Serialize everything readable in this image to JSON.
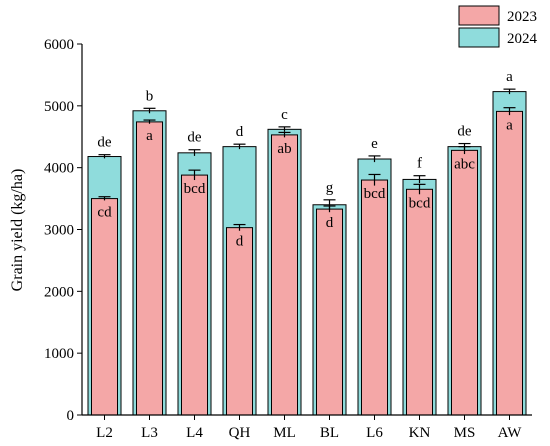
{
  "chart_data": {
    "type": "bar",
    "xlabel": "",
    "ylabel": "Grain yield (kg/ha)",
    "ylim": [
      0,
      6000
    ],
    "yticks": [
      "0",
      "1000",
      "2000",
      "3000",
      "4000",
      "5000",
      "6000"
    ],
    "categories": [
      "L2",
      "L3",
      "L4",
      "QH",
      "ML",
      "BL",
      "L6",
      "KN",
      "MS",
      "AW"
    ],
    "legend_position": "top-right",
    "series": [
      {
        "name": "2024",
        "color": "#8fdcdc",
        "values": [
          4180,
          4920,
          4240,
          4340,
          4620,
          3400,
          4140,
          3810,
          4340,
          5230
        ],
        "errors": [
          30,
          40,
          50,
          40,
          40,
          80,
          50,
          60,
          50,
          40
        ],
        "letters": [
          "de",
          "b",
          "de",
          "d",
          "c",
          "g",
          "e",
          "f",
          "de",
          "a"
        ]
      },
      {
        "name": "2023",
        "color": "#f4a7a7",
        "values": [
          3500,
          4740,
          3880,
          3030,
          4530,
          3330,
          3800,
          3650,
          4280,
          4910
        ],
        "errors": [
          30,
          30,
          80,
          50,
          40,
          50,
          90,
          80,
          60,
          60
        ],
        "letters": [
          "cd",
          "a",
          "bcd",
          "d",
          "ab",
          "d",
          "bcd",
          "bcd",
          "abc",
          "a"
        ]
      }
    ]
  }
}
